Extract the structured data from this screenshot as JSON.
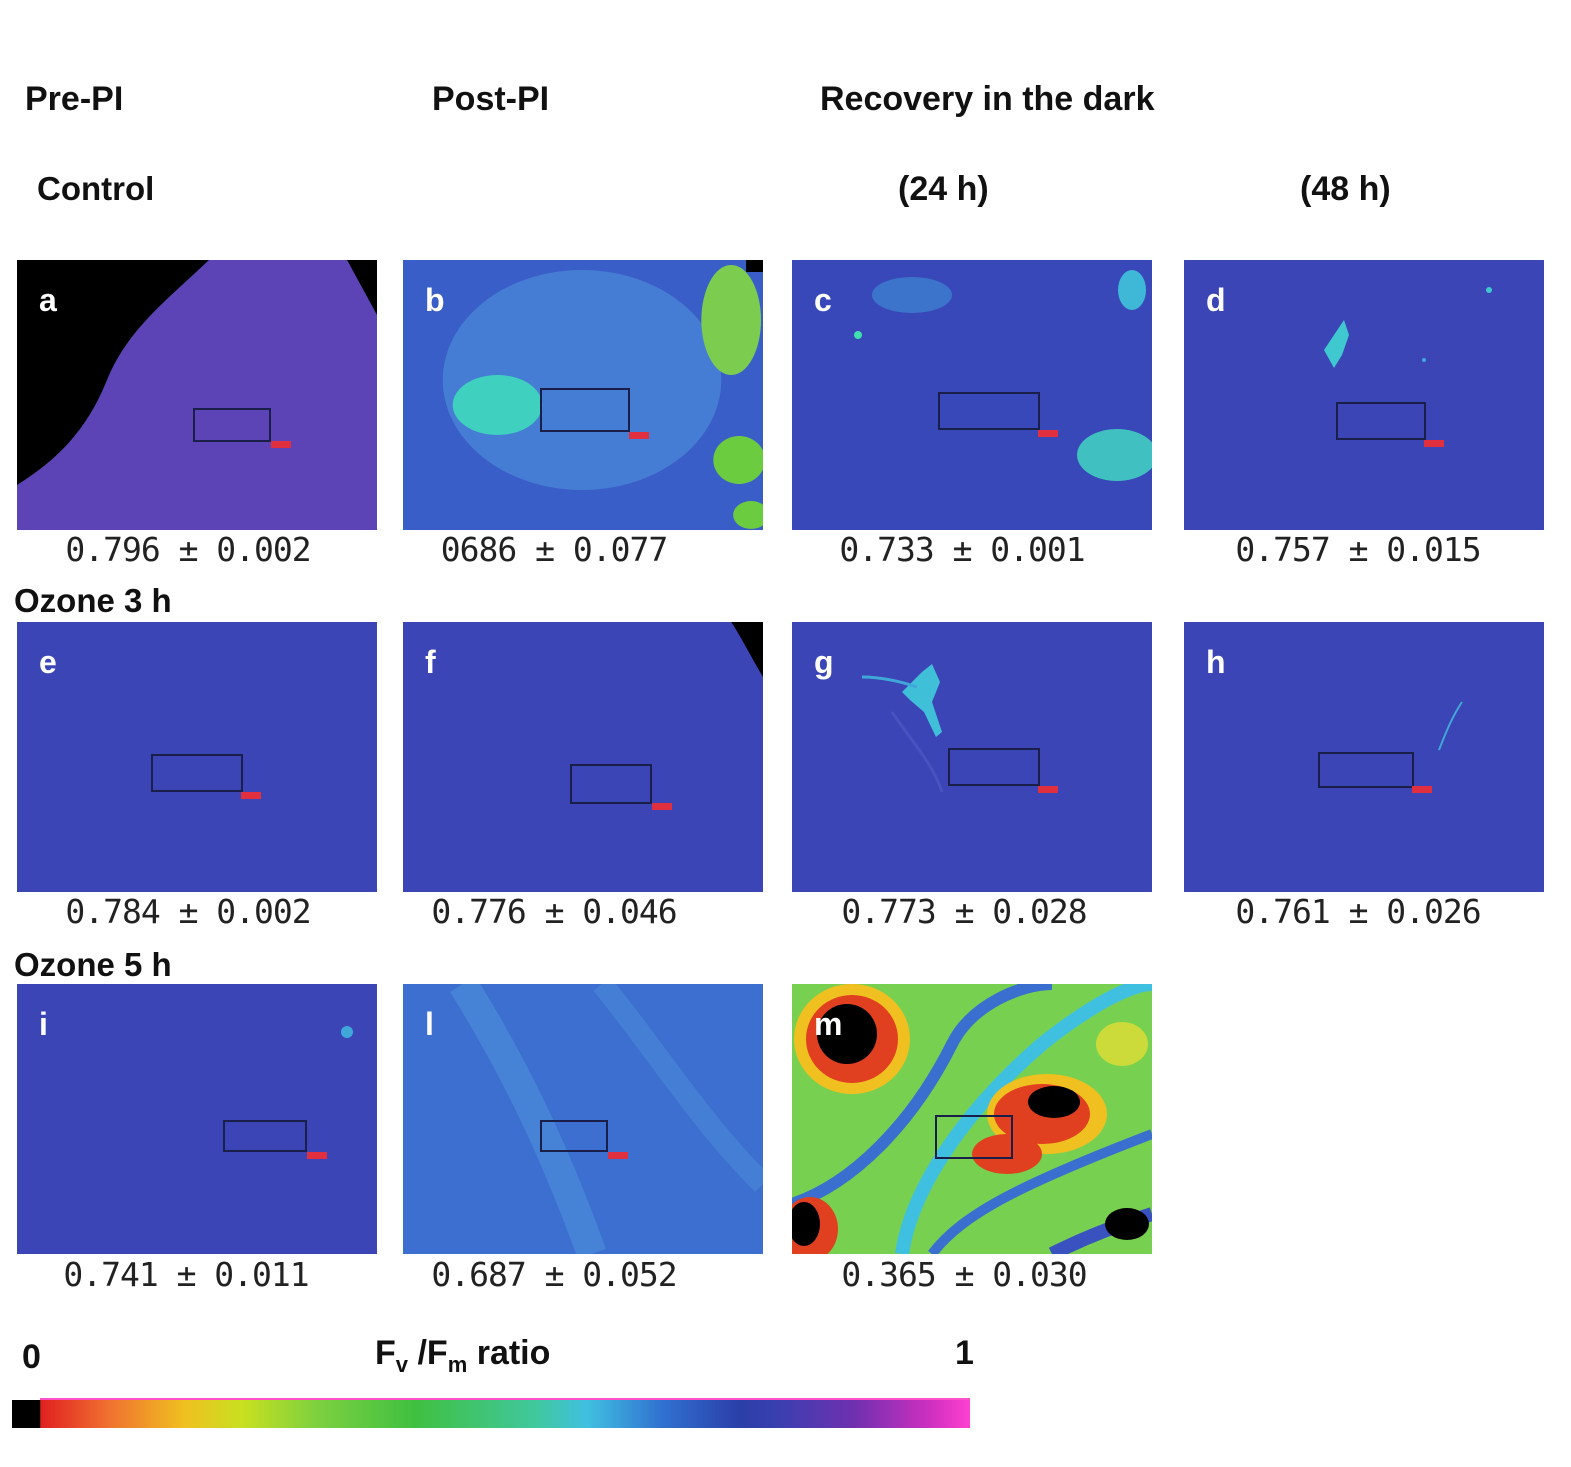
{
  "headers": {
    "pre_pi": "Pre-PI",
    "post_pi": "Post-PI",
    "recovery": "Recovery in the dark",
    "h24": "(24 h)",
    "h48": "(48 h)"
  },
  "rows": {
    "control": "Control",
    "ozone3": "Ozone 3 h",
    "ozone5": "Ozone 5 h"
  },
  "panels": {
    "a": {
      "letter": "a",
      "value": "0.796 ± 0.002"
    },
    "b": {
      "letter": "b",
      "value": "0686 ± 0.077"
    },
    "c": {
      "letter": "c",
      "value": "0.733 ± 0.001"
    },
    "d": {
      "letter": "d",
      "value": "0.757 ± 0.015"
    },
    "e": {
      "letter": "e",
      "value": "0.784 ± 0.002"
    },
    "f": {
      "letter": "f",
      "value": "0.776 ± 0.046"
    },
    "g": {
      "letter": "g",
      "value": "0.773 ± 0.028"
    },
    "h": {
      "letter": "h",
      "value": "0.761 ± 0.026"
    },
    "i": {
      "letter": "i",
      "value": "0.741 ± 0.011"
    },
    "l": {
      "letter": "l",
      "value": "0.687 ± 0.052"
    },
    "m": {
      "letter": "m",
      "value": "0.365 ± 0.030"
    }
  },
  "scale": {
    "min": "0",
    "max": "1",
    "label_main": "F",
    "label_sub1": "v",
    "label_mid": " /F",
    "label_sub2": "m",
    "label_end": " ratio"
  },
  "colors": {
    "base_blue": "#3b45b5",
    "control_purple": "#5d44b6",
    "cyan": "#40c8d8",
    "green": "#6cd040",
    "red": "#e04020",
    "black": "#000000"
  }
}
